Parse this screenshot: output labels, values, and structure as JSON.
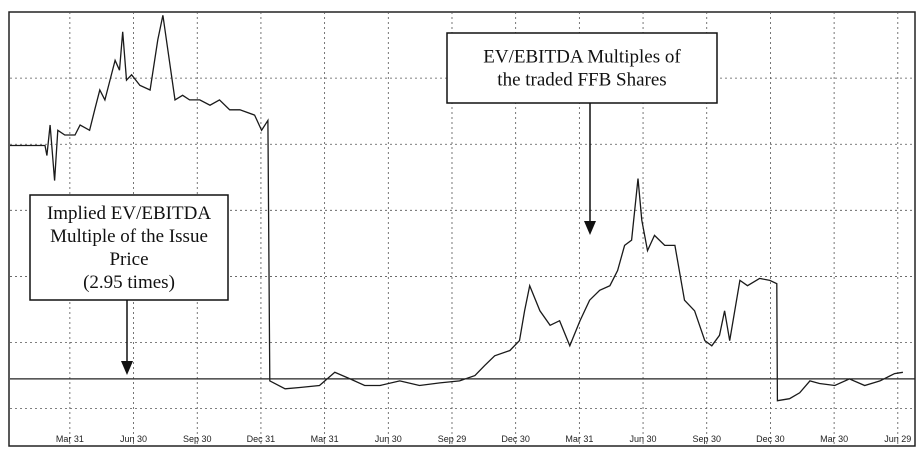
{
  "chart_data": {
    "type": "line",
    "x": [
      -0.94,
      -0.39,
      -0.36,
      -0.31,
      -0.24,
      -0.19,
      -0.08,
      0.08,
      0.16,
      0.31,
      0.39,
      0.47,
      0.55,
      0.63,
      0.71,
      0.78,
      0.83,
      0.89,
      0.97,
      1.1,
      1.26,
      1.38,
      1.46,
      1.54,
      1.65,
      1.77,
      1.88,
      2.04,
      2.2,
      2.35,
      2.51,
      2.67,
      2.9,
      3.01,
      3.11,
      3.14,
      3.38,
      3.61,
      3.92,
      4.16,
      4.4,
      4.63,
      4.87,
      5.18,
      5.49,
      5.81,
      6.12,
      6.36,
      6.51,
      6.67,
      6.91,
      7.06,
      7.14,
      7.22,
      7.38,
      7.54,
      7.69,
      7.85,
      8.01,
      8.16,
      8.32,
      8.48,
      8.6,
      8.71,
      8.82,
      8.92,
      8.98,
      9.07,
      9.18,
      9.34,
      9.5,
      9.65,
      9.81,
      9.97,
      10.08,
      10.2,
      10.28,
      10.36,
      10.52,
      10.64,
      10.83,
      10.99,
      11.1,
      11.11,
      11.3,
      11.46,
      11.62,
      11.77,
      12.01,
      12.24,
      12.48,
      12.72,
      12.95,
      13.08
    ],
    "series": [
      {
        "color": "#1a1a1a",
        "values": [
          6.48,
          6.48,
          6.33,
          6.79,
          5.95,
          6.71,
          6.64,
          6.64,
          6.79,
          6.71,
          7.02,
          7.32,
          7.17,
          7.47,
          7.77,
          7.62,
          8.2,
          7.47,
          7.55,
          7.39,
          7.32,
          8.08,
          8.45,
          7.92,
          7.17,
          7.24,
          7.17,
          7.17,
          7.09,
          7.17,
          7.02,
          7.02,
          6.94,
          6.71,
          6.86,
          2.92,
          2.8,
          2.82,
          2.85,
          3.05,
          2.95,
          2.85,
          2.85,
          2.92,
          2.85,
          2.89,
          2.92,
          3.0,
          3.15,
          3.3,
          3.38,
          3.53,
          3.98,
          4.36,
          3.98,
          3.76,
          3.83,
          3.45,
          3.83,
          4.14,
          4.29,
          4.36,
          4.59,
          4.97,
          5.05,
          5.98,
          5.35,
          4.89,
          5.12,
          4.97,
          4.97,
          4.14,
          3.98,
          3.53,
          3.45,
          3.61,
          3.98,
          3.53,
          4.44,
          4.36,
          4.47,
          4.44,
          4.39,
          2.62,
          2.65,
          2.74,
          2.92,
          2.88,
          2.85,
          2.95,
          2.85,
          2.92,
          3.03,
          3.05
        ]
      }
    ],
    "hline": 2.95,
    "xlim": [
      -0.94,
      13.27
    ],
    "xticks": [
      {
        "value": 0,
        "label": "Mar 31"
      },
      {
        "value": 1,
        "label": "Jun 30"
      },
      {
        "value": 2,
        "label": "Sep 30"
      },
      {
        "value": 3,
        "label": "Dec 31"
      },
      {
        "value": 4,
        "label": "Mar 31"
      },
      {
        "value": 5,
        "label": "Jun 30"
      },
      {
        "value": 6,
        "label": "Sep 29"
      },
      {
        "value": 7,
        "label": "Dec 30"
      },
      {
        "value": 8,
        "label": "Mar 31"
      },
      {
        "value": 9,
        "label": "Jun 30"
      },
      {
        "value": 10,
        "label": "Sep 30"
      },
      {
        "value": 11,
        "label": "Dec 30"
      },
      {
        "value": 12,
        "label": "Mar 30"
      },
      {
        "value": 13,
        "label": "Jun 29"
      }
    ],
    "ylim": [
      1.95,
      8.5
    ],
    "ygrid": [
      2.5,
      3.5,
      4.5,
      5.5,
      6.5,
      7.5
    ],
    "annotations": [
      {
        "lines": [
          "EV/EBITDA Multiples of",
          "the traded FFB Shares"
        ]
      },
      {
        "lines": [
          "Implied EV/EBITDA",
          "Multiple of the Issue",
          "Price",
          "(2.95 times)"
        ]
      }
    ]
  }
}
